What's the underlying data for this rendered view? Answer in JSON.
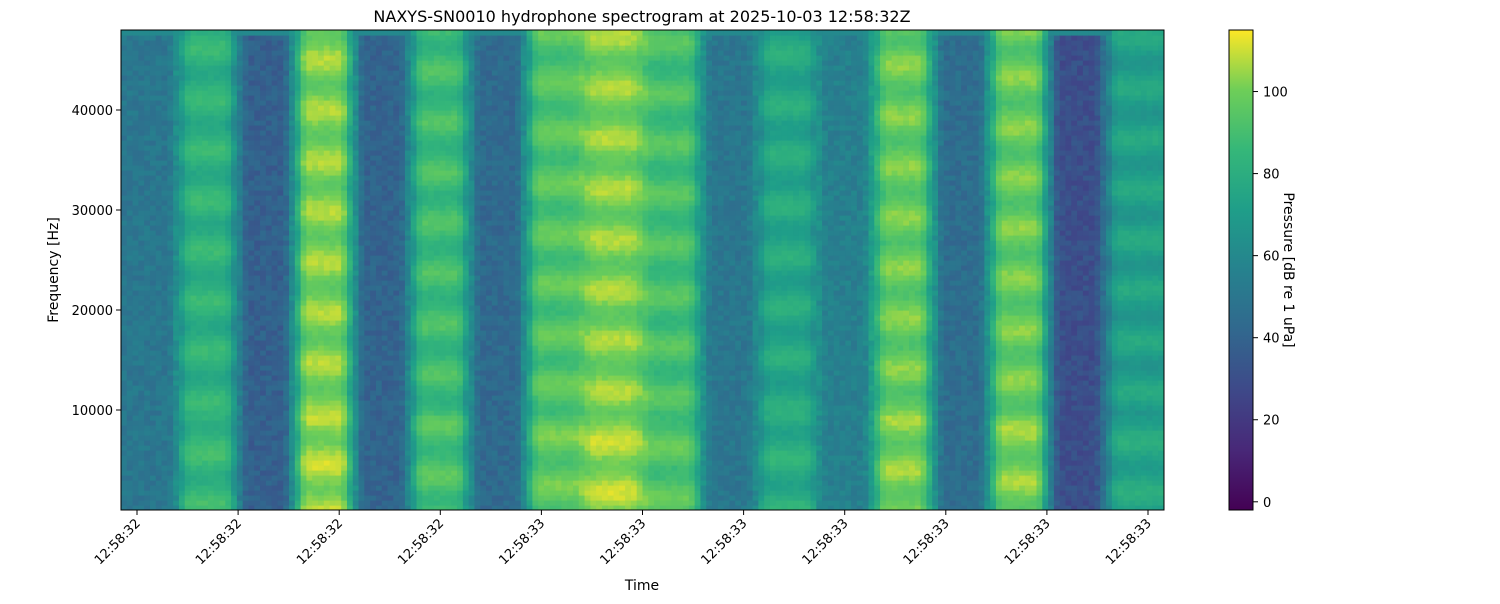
{
  "chart_data": {
    "type": "heatmap",
    "title": "NAXYS-SN0010 hydrophone spectrogram at 2025-10-03 12:58:32Z",
    "xlabel": "Time",
    "ylabel": "Frequency [Hz]",
    "colorbar_label": "Pressure [dB re 1 uPa]",
    "colormap": "viridis",
    "colorbar_range": [
      -2,
      115
    ],
    "colorbar_ticks": [
      0,
      20,
      40,
      60,
      80,
      100
    ],
    "colorbar_tick_labels": [
      "0",
      "20",
      "40",
      "60",
      "80",
      "100"
    ],
    "ylim": [
      0,
      48000
    ],
    "y_ticks": [
      10000,
      20000,
      30000,
      40000
    ],
    "y_tick_labels": [
      "10000",
      "20000",
      "30000",
      "40000"
    ],
    "x_tick_labels": [
      "12:58:32",
      "12:58:32",
      "12:58:32",
      "12:58:32",
      "12:58:33",
      "12:58:33",
      "12:58:33",
      "12:58:33",
      "12:58:33",
      "12:58:33",
      "12:58:33"
    ],
    "time_segments": [
      {
        "level": 50,
        "texture": "noise"
      },
      {
        "level": 84,
        "texture": "harmonic"
      },
      {
        "level": 38,
        "texture": "noise"
      },
      {
        "level": 104,
        "texture": "harmonic"
      },
      {
        "level": 40,
        "texture": "noise"
      },
      {
        "level": 90,
        "texture": "harmonic"
      },
      {
        "level": 43,
        "texture": "noise"
      },
      {
        "level": 95,
        "texture": "harmonic"
      },
      {
        "level": 104,
        "texture": "harmonic"
      },
      {
        "level": 92,
        "texture": "harmonic"
      },
      {
        "level": 50,
        "texture": "noise"
      },
      {
        "level": 78,
        "texture": "harmonic"
      },
      {
        "level": 55,
        "texture": "noise"
      },
      {
        "level": 100,
        "texture": "harmonic"
      },
      {
        "level": 45,
        "texture": "noise"
      },
      {
        "level": 100,
        "texture": "harmonic"
      },
      {
        "level": 30,
        "texture": "noise"
      },
      {
        "level": 74,
        "texture": "harmonic"
      }
    ]
  }
}
